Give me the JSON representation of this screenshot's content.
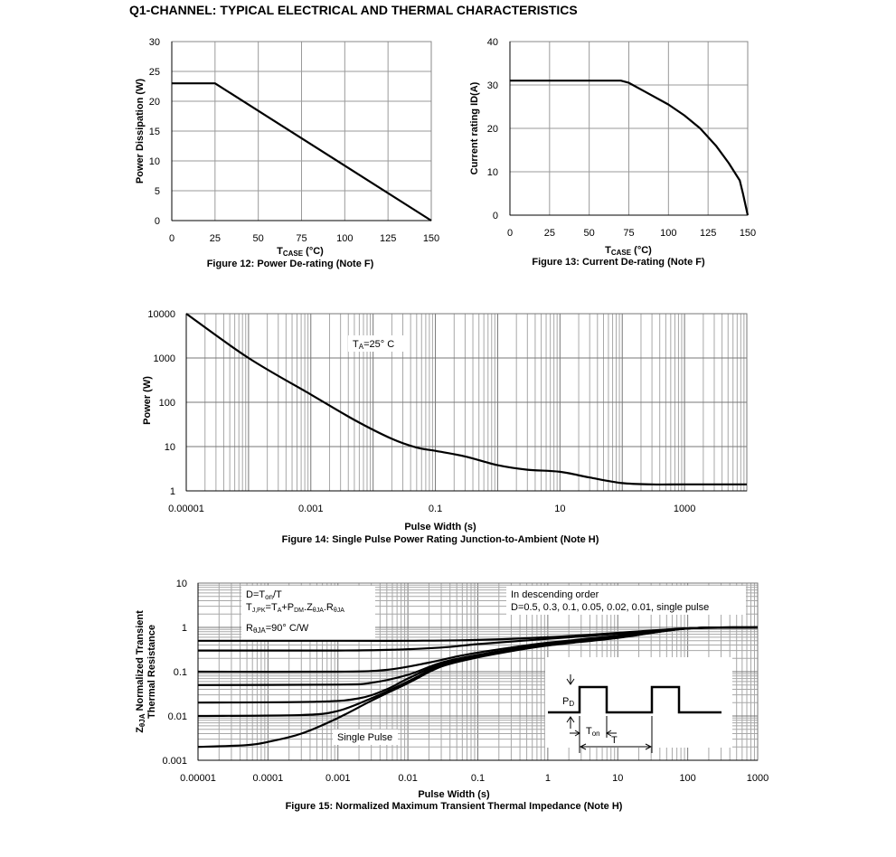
{
  "page_title": "Q1-CHANNEL: TYPICAL ELECTRICAL AND THERMAL CHARACTERISTICS",
  "chart_data": [
    {
      "type": "line",
      "id": "fig12",
      "caption": "Figure 12: Power De-rating (Note F)",
      "xlabel_main": "T",
      "xlabel_sub": "CASE",
      "xlabel_unit": " (°C)",
      "ylabel": "Power Dissipation (W)",
      "xlim": [
        0,
        150
      ],
      "ylim": [
        0,
        30
      ],
      "xticks": [
        "0",
        "25",
        "50",
        "75",
        "100",
        "125",
        "150"
      ],
      "yticks": [
        "0",
        "5",
        "10",
        "15",
        "20",
        "25",
        "30"
      ],
      "grid": true,
      "series": [
        {
          "x": [
            0,
            25,
            150
          ],
          "y": [
            23,
            23,
            0
          ]
        }
      ]
    },
    {
      "type": "line",
      "id": "fig13",
      "caption": "Figure 13: Current De-rating (Note F)",
      "xlabel_main": "T",
      "xlabel_sub": "CASE",
      "xlabel_unit": " (°C)",
      "ylabel": "Current rating ID(A)",
      "xlim": [
        0,
        150
      ],
      "ylim": [
        0,
        40
      ],
      "xticks": [
        "0",
        "25",
        "50",
        "75",
        "100",
        "125",
        "150"
      ],
      "yticks": [
        "0",
        "10",
        "20",
        "30",
        "40"
      ],
      "grid": true,
      "series": [
        {
          "x": [
            0,
            70,
            75,
            85,
            100,
            110,
            120,
            130,
            138,
            145,
            147,
            150
          ],
          "y": [
            31,
            31,
            30.5,
            28.5,
            25.5,
            23,
            20,
            16,
            12,
            8,
            5,
            0
          ]
        }
      ]
    },
    {
      "type": "line",
      "id": "fig14",
      "caption": "Figure 14: Single Pulse Power Rating Junction-to-Ambient (Note H)",
      "xlabel": "Pulse Width (s)",
      "ylabel": "Power (W)",
      "xscale": "log",
      "yscale": "log",
      "xlim": [
        1e-05,
        10000
      ],
      "ylim": [
        1,
        10000
      ],
      "xticks": [
        "0.00001",
        "0.001",
        "0.1",
        "10",
        "1000"
      ],
      "yticks": [
        "1",
        "10",
        "100",
        "1000",
        "10000"
      ],
      "grid": true,
      "annotation_main": "T",
      "annotation_sub": "A",
      "annotation_rest": "=25° C",
      "series": [
        {
          "x": [
            1e-05,
            0.0001,
            0.001,
            0.005,
            0.02,
            0.05,
            0.1,
            0.3,
            1,
            3,
            10,
            30,
            100,
            300,
            1000,
            10000
          ],
          "y": [
            10000,
            1000,
            150,
            40,
            15,
            9.5,
            8,
            6,
            3.8,
            3,
            2.7,
            2,
            1.5,
            1.4,
            1.4,
            1.4
          ]
        }
      ]
    },
    {
      "type": "line",
      "id": "fig15",
      "caption": "Figure 15: Normalized Maximum Transient Thermal Impedance (Note H)",
      "xlabel": "Pulse Width (s)",
      "ylabel_line1": "Z",
      "ylabel_line1_sub": "θJA",
      "ylabel_line1_rest": " Normalized Transient",
      "ylabel_line2": "Thermal Resistance",
      "xscale": "log",
      "yscale": "log",
      "xlim": [
        1e-05,
        1000
      ],
      "ylim": [
        0.001,
        10
      ],
      "xticks": [
        "0.00001",
        "0.0001",
        "0.001",
        "0.01",
        "0.1",
        "1",
        "10",
        "100",
        "1000"
      ],
      "yticks": [
        "0.001",
        "0.01",
        "0.1",
        "1",
        "10"
      ],
      "grid": true,
      "legend_box": {
        "line1_a": "D=T",
        "line1_sub": "on",
        "line1_b": "/T",
        "line2_a": "T",
        "line2_sub1": "J,PK",
        "line2_b": "=T",
        "line2_sub2": "A",
        "line2_c": "+P",
        "line2_sub3": "DM",
        "line2_d": ".Z",
        "line2_sub4": "θJA",
        "line2_e": ".R",
        "line2_sub5": "θJA",
        "line3_a": "R",
        "line3_sub": "θJA",
        "line3_b": "=90° C/W"
      },
      "order_note_1": "In descending order",
      "order_note_2": "D=0.5, 0.3, 0.1, 0.05, 0.02, 0.01, single pulse",
      "single_pulse_label": "Single Pulse",
      "inset": {
        "pd_main": "P",
        "pd_sub": "D",
        "ton_main": "T",
        "ton_sub": "on",
        "t_label": "T"
      },
      "series": [
        {
          "name": "D=0.5",
          "x": [
            1e-05,
            0.001,
            0.01,
            0.1,
            1,
            10,
            100,
            1000
          ],
          "y": [
            0.5,
            0.5,
            0.5,
            0.52,
            0.6,
            0.75,
            0.95,
            1
          ]
        },
        {
          "name": "D=0.3",
          "x": [
            1e-05,
            0.001,
            0.005,
            0.03,
            0.1,
            1,
            10,
            100,
            1000
          ],
          "y": [
            0.3,
            0.3,
            0.31,
            0.35,
            0.42,
            0.55,
            0.72,
            0.95,
            1
          ]
        },
        {
          "name": "D=0.1",
          "x": [
            1e-05,
            0.001,
            0.005,
            0.02,
            0.05,
            0.1,
            0.3,
            1,
            10,
            100,
            1000
          ],
          "y": [
            0.1,
            0.1,
            0.11,
            0.16,
            0.22,
            0.27,
            0.35,
            0.45,
            0.65,
            0.95,
            1
          ]
        },
        {
          "name": "D=0.05",
          "x": [
            1e-05,
            0.001,
            0.003,
            0.01,
            0.03,
            0.1,
            0.3,
            1,
            10,
            100,
            1000
          ],
          "y": [
            0.05,
            0.051,
            0.056,
            0.085,
            0.16,
            0.24,
            0.32,
            0.42,
            0.62,
            0.95,
            1
          ]
        },
        {
          "name": "D=0.02",
          "x": [
            1e-05,
            0.0005,
            0.002,
            0.005,
            0.01,
            0.03,
            0.1,
            0.3,
            1,
            10,
            100,
            1000
          ],
          "y": [
            0.02,
            0.021,
            0.025,
            0.04,
            0.07,
            0.15,
            0.23,
            0.31,
            0.41,
            0.6,
            0.95,
            1
          ]
        },
        {
          "name": "D=0.01",
          "x": [
            1e-05,
            0.0003,
            0.001,
            0.003,
            0.01,
            0.03,
            0.1,
            0.3,
            1,
            10,
            100,
            1000
          ],
          "y": [
            0.01,
            0.0105,
            0.013,
            0.025,
            0.06,
            0.14,
            0.22,
            0.3,
            0.4,
            0.59,
            0.95,
            1
          ]
        },
        {
          "name": "single pulse",
          "x": [
            1e-05,
            5e-05,
            0.0001,
            0.0003,
            0.001,
            0.003,
            0.01,
            0.03,
            0.1,
            0.3,
            1,
            10,
            100,
            1000
          ],
          "y": [
            0.002,
            0.0022,
            0.0026,
            0.004,
            0.009,
            0.022,
            0.055,
            0.13,
            0.21,
            0.29,
            0.39,
            0.58,
            0.95,
            1
          ]
        }
      ]
    }
  ]
}
